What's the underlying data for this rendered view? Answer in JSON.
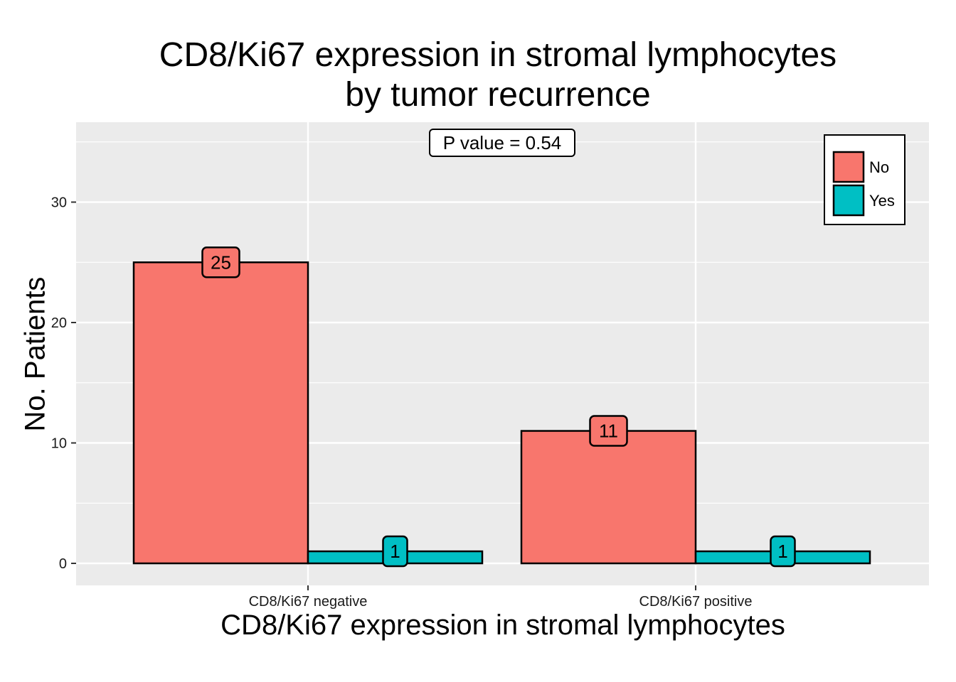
{
  "chart_data": {
    "type": "bar",
    "title_line1": "CD8/Ki67 expression in stromal lymphocytes",
    "title_line2": "by tumor recurrence",
    "xlabel": "CD8/Ki67 expression in stromal lymphocytes",
    "ylabel": "No. Patients",
    "categories": [
      "CD8/Ki67 negative",
      "CD8/Ki67 positive"
    ],
    "series": [
      {
        "name": "No",
        "values": [
          25,
          11
        ],
        "color": "#F8766D"
      },
      {
        "name": "Yes",
        "values": [
          1,
          1
        ],
        "color": "#00BFC4"
      }
    ],
    "ylim": [
      -1.7,
      36.7
    ],
    "yticks": [
      0,
      10,
      20,
      30
    ],
    "annotation": "P value = 0.54",
    "legend_position": "top-right",
    "grid": true,
    "panel_color": "#EBEBEB"
  }
}
